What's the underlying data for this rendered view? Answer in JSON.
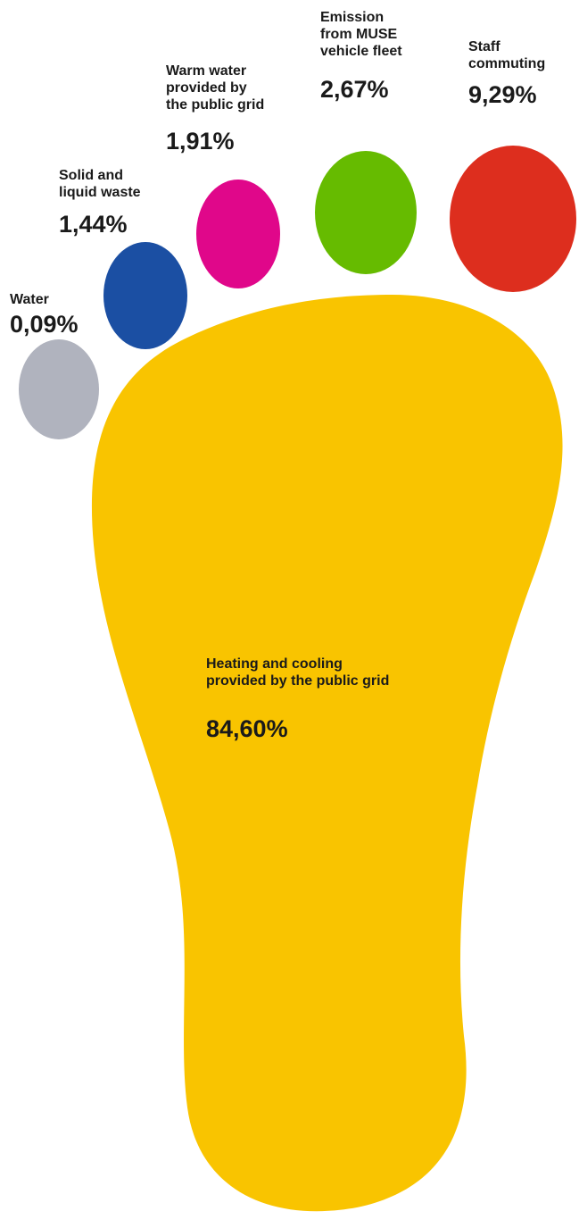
{
  "chart_data": {
    "type": "pictogram",
    "title": "",
    "items": [
      {
        "id": "water",
        "label": "Water",
        "value": 0.09,
        "display_value": "0,09%",
        "color": "#b0b3be"
      },
      {
        "id": "waste",
        "label": "Solid and\nliquid waste",
        "value": 1.44,
        "display_value": "1,44%",
        "color": "#1b4fa3"
      },
      {
        "id": "warm-water",
        "label": "Warm water\nprovided by\nthe public grid",
        "value": 1.91,
        "display_value": "1,91%",
        "color": "#e0078a"
      },
      {
        "id": "fleet",
        "label": "Emission\nfrom MUSE\nvehicle fleet",
        "value": 2.67,
        "display_value": "2,67%",
        "color": "#66bb00"
      },
      {
        "id": "commuting",
        "label": "Staff\ncommuting",
        "value": 9.29,
        "display_value": "9,29%",
        "color": "#dd2e1e"
      },
      {
        "id": "heating",
        "label": "Heating and cooling\nprovided by the public grid",
        "value": 84.6,
        "display_value": "84,60%",
        "color": "#f9c400"
      }
    ]
  }
}
